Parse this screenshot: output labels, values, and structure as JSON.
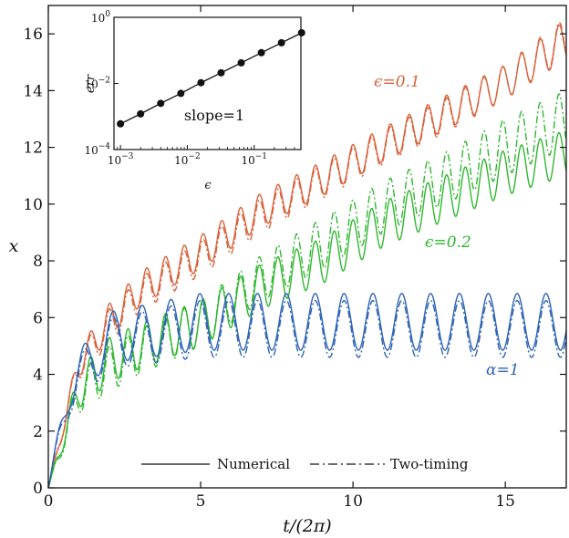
{
  "chart_data": {
    "type": "line",
    "xlabel": "t/(2π)",
    "ylabel": "x",
    "xlim": [
      0,
      17
    ],
    "ylim": [
      0,
      17
    ],
    "xticks": [
      "0",
      "5",
      "10",
      "15"
    ],
    "yticks": [
      "0",
      "2",
      "4",
      "6",
      "8",
      "10",
      "12",
      "14",
      "16"
    ],
    "grid": false,
    "legend_position": "bottom-center",
    "legend": [
      {
        "label": "Numerical",
        "style": "solid"
      },
      {
        "label": "Two-timing",
        "style": "dash-dot"
      }
    ],
    "annotations": [
      {
        "text": "ϵ=0.1",
        "color": "#d9623b"
      },
      {
        "text": "ϵ=0.2",
        "color": "#2fb72f"
      },
      {
        "text": "α=1",
        "color": "#2e63b5"
      }
    ],
    "series": [
      {
        "annotation": "ϵ=0.1",
        "style": "solid",
        "color": "#d9623b",
        "envelope_x": [
          0,
          1,
          2,
          3,
          5,
          7,
          9,
          11,
          13,
          15,
          17
        ],
        "center": [
          0,
          4.4,
          5.9,
          7.0,
          8.3,
          9.8,
          10.9,
          12.1,
          13.2,
          14.3,
          15.8
        ],
        "amplitude": [
          0,
          0.5,
          0.6,
          0.6,
          0.6,
          0.6,
          0.6,
          0.6,
          0.6,
          0.6,
          0.7
        ],
        "period": 0.615
      },
      {
        "annotation": "ϵ=0.1",
        "style": "dash-dot",
        "color": "#d9623b",
        "envelope_x": [
          0,
          1,
          2,
          3,
          5,
          7,
          9,
          11,
          13,
          15,
          17
        ],
        "center": [
          0,
          4.3,
          5.7,
          6.8,
          8.1,
          9.6,
          10.8,
          12.0,
          13.1,
          14.3,
          15.9
        ],
        "amplitude": [
          0,
          0.5,
          0.6,
          0.6,
          0.6,
          0.6,
          0.6,
          0.6,
          0.6,
          0.6,
          0.7
        ],
        "period": 0.615
      },
      {
        "annotation": "ϵ=0.2",
        "style": "solid",
        "color": "#2fb72f",
        "envelope_x": [
          0,
          1,
          2,
          3,
          5,
          7,
          9,
          11,
          13,
          15,
          17
        ],
        "center": [
          0,
          3.5,
          4.5,
          5.0,
          5.8,
          7.1,
          8.0,
          9.3,
          10.2,
          11.1,
          11.8
        ],
        "amplitude": [
          0,
          0.7,
          0.8,
          0.8,
          0.8,
          0.8,
          0.8,
          0.8,
          0.8,
          0.8,
          0.8
        ],
        "period": 0.615
      },
      {
        "annotation": "ϵ=0.2",
        "style": "dash-dot",
        "color": "#2fb72f",
        "envelope_x": [
          0,
          1,
          2,
          3,
          5,
          7,
          9,
          11,
          13,
          15,
          17
        ],
        "center": [
          0,
          3.3,
          4.2,
          4.8,
          5.8,
          7.4,
          8.6,
          9.9,
          10.9,
          12.0,
          13.0
        ],
        "amplitude": [
          0,
          0.7,
          0.8,
          0.8,
          0.8,
          0.8,
          0.9,
          0.9,
          0.9,
          1.0,
          1.0
        ],
        "period": 0.615
      },
      {
        "annotation": "α=1",
        "style": "solid",
        "color": "#2e63b5",
        "envelope_x": [
          0,
          0.7,
          2,
          5,
          10,
          17
        ],
        "center": [
          0,
          3.6,
          5.3,
          5.85,
          5.85,
          5.85
        ],
        "amplitude": [
          0,
          0.8,
          0.9,
          1.0,
          1.0,
          1.0
        ],
        "period": 0.947
      },
      {
        "annotation": "α=1",
        "style": "dash-dot",
        "color": "#2e63b5",
        "envelope_x": [
          0,
          0.7,
          2,
          5,
          10,
          17
        ],
        "center": [
          0,
          3.4,
          5.1,
          5.6,
          5.6,
          5.6
        ],
        "amplitude": [
          0,
          0.8,
          0.9,
          1.0,
          1.0,
          1.0
        ],
        "period": 0.947
      }
    ],
    "inset": {
      "type": "scatter",
      "xscale": "log",
      "yscale": "log",
      "xlabel": "ϵ",
      "ylabel": "err",
      "xlim": [
        0.0008,
        0.5
      ],
      "ylim": [
        0.0001,
        1
      ],
      "x_tick_values": [
        0.001,
        0.01,
        0.1
      ],
      "y_tick_values": [
        0.0001,
        0.01,
        1
      ],
      "x_ticks": [
        {
          "base": "10",
          "exp": "−3"
        },
        {
          "base": "10",
          "exp": "−2"
        },
        {
          "base": "10",
          "exp": "−1"
        }
      ],
      "y_ticks": [
        {
          "base": "10",
          "exp": "−4"
        },
        {
          "base": "10",
          "exp": "−2"
        },
        {
          "base": "10",
          "exp": "0"
        }
      ],
      "points": [
        {
          "x": 0.001,
          "y": 0.0006
        },
        {
          "x": 0.002,
          "y": 0.0012
        },
        {
          "x": 0.004,
          "y": 0.0025
        },
        {
          "x": 0.008,
          "y": 0.005
        },
        {
          "x": 0.016,
          "y": 0.0105
        },
        {
          "x": 0.032,
          "y": 0.021
        },
        {
          "x": 0.064,
          "y": 0.042
        },
        {
          "x": 0.128,
          "y": 0.085
        },
        {
          "x": 0.256,
          "y": 0.17
        },
        {
          "x": 0.512,
          "y": 0.34
        }
      ],
      "annotation": "slope=1"
    }
  }
}
